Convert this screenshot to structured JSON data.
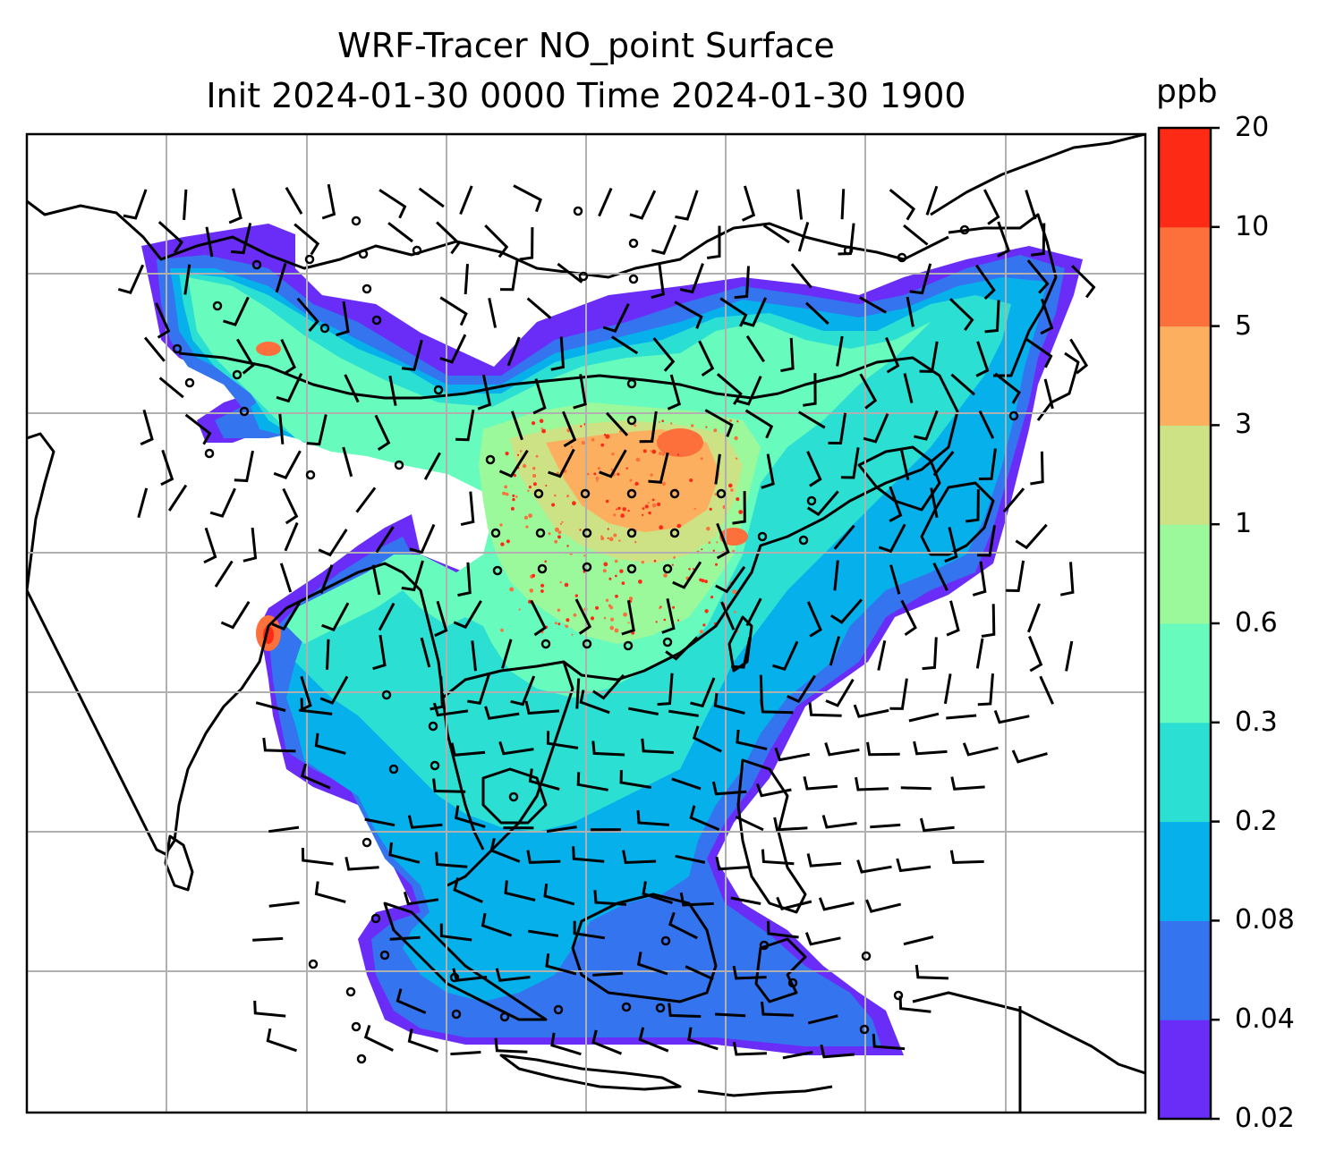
{
  "title": {
    "line1": "WRF-Tracer NO_point Surface",
    "line2": "Init 2024-01-30 0000 Time 2024-01-30 1900"
  },
  "colorbar": {
    "unit": "ppb",
    "ticks": [
      "0.02",
      "0.04",
      "0.08",
      "0.2",
      "0.3",
      "0.6",
      "1",
      "3",
      "5",
      "10",
      "20"
    ],
    "colors": [
      "#6a2cf7",
      "#3574ef",
      "#06b0eb",
      "#2cdfd3",
      "#67fbbd",
      "#9bf99c",
      "#cde284",
      "#fcaf5f",
      "#fd6f3b",
      "#fd2a16"
    ]
  },
  "map": {
    "gridlines": "on",
    "grid_color": "#b0b0b0",
    "coastline_color": "#000000",
    "wind_barbs": "on",
    "calm_marker": "circle"
  }
}
